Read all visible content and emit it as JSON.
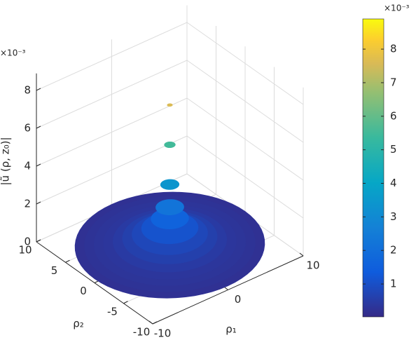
{
  "chart_data": {
    "type": "surface",
    "xlabel": "ρ₁",
    "ylabel": "ρ₂",
    "zlabel": "|ũ (ρ, z₀)|",
    "z_exponent": "×10⁻³",
    "xlim": [
      -10,
      10
    ],
    "ylim": [
      -10,
      10
    ],
    "zlim": [
      0,
      8.9
    ],
    "xticks": [
      -10,
      0,
      10
    ],
    "yticks": [
      -10,
      -5,
      0,
      5,
      10
    ],
    "zticks": [
      0,
      2,
      4,
      6,
      8
    ],
    "grid": true,
    "r": [
      0,
      0.3,
      0.6,
      1,
      1.5,
      2,
      3,
      4,
      5,
      6,
      7,
      8,
      9,
      10
    ],
    "values": [
      8.9,
      7.6,
      5.5,
      3.4,
      2.2,
      1.6,
      1.1,
      0.8,
      0.6,
      0.45,
      0.35,
      0.3,
      0.25,
      0.2
    ],
    "colorbar": {
      "clim": [
        0.02,
        8.9
      ],
      "ticks": [
        1,
        2,
        3,
        4,
        5,
        6,
        7,
        8
      ],
      "exponent": "×10⁻³"
    }
  }
}
